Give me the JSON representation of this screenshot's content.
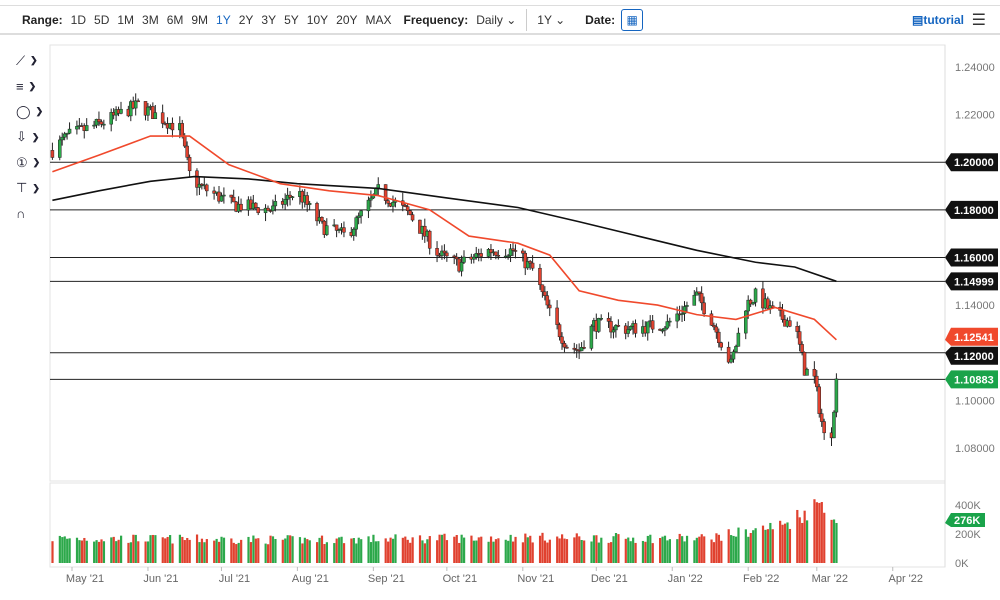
{
  "toolbar": {
    "range_label": "Range:",
    "ranges": [
      "1D",
      "5D",
      "1M",
      "3M",
      "6M",
      "9M",
      "1Y",
      "2Y",
      "3Y",
      "5Y",
      "10Y",
      "20Y",
      "MAX"
    ],
    "active_range": "1Y",
    "frequency_label": "Frequency:",
    "frequency": "Daily",
    "period": "1Y",
    "date_label": "Date:",
    "tutorial": "tutorial"
  },
  "colors": {
    "up": "#2ca84a",
    "down": "#e0412f",
    "ma_fast": "#f0492c",
    "ma_slow": "#111111",
    "label_bg": "#111111"
  },
  "left_tools": [
    "line-tool-icon",
    "fib-tool-icon",
    "shape-tool-icon",
    "arrow-down-icon",
    "numbered-marker-icon",
    "measure-tool-icon",
    "magnet-icon"
  ],
  "chart_data": {
    "type": "candlestick",
    "y_ticks": [
      "1.24000",
      "1.22000",
      "1.20000",
      "1.18000",
      "1.16000",
      "1.14000",
      "1.12000",
      "1.10000",
      "1.08000"
    ],
    "ylim": [
      1.074,
      1.248
    ],
    "x_ticks": [
      "May '21",
      "Jun '21",
      "Jul '21",
      "Aug '21",
      "Sep '21",
      "Oct '21",
      "Nov '21",
      "Dec '21",
      "Jan '22",
      "Feb '22",
      "Mar '22",
      "Apr '22"
    ],
    "close_path": [
      [
        "2021-04-23",
        1.205
      ],
      [
        "2021-04-29",
        1.211
      ],
      [
        "2021-05-12",
        1.216
      ],
      [
        "2021-05-28",
        1.224
      ],
      [
        "2021-06-04",
        1.22
      ],
      [
        "2021-06-14",
        1.214
      ],
      [
        "2021-06-18",
        1.195
      ],
      [
        "2021-06-22",
        1.19
      ],
      [
        "2021-07-06",
        1.182
      ],
      [
        "2021-07-22",
        1.18
      ],
      [
        "2021-08-01",
        1.188
      ],
      [
        "2021-08-11",
        1.173
      ],
      [
        "2021-08-21",
        1.169
      ],
      [
        "2021-09-03",
        1.188
      ],
      [
        "2021-09-16",
        1.178
      ],
      [
        "2021-09-28",
        1.161
      ],
      [
        "2021-10-06",
        1.157
      ],
      [
        "2021-10-18",
        1.163
      ],
      [
        "2021-10-28",
        1.163
      ],
      [
        "2021-11-05",
        1.155
      ],
      [
        "2021-11-13",
        1.134
      ],
      [
        "2021-11-19",
        1.123
      ],
      [
        "2021-11-24",
        1.121
      ],
      [
        "2021-11-30",
        1.132
      ],
      [
        "2021-12-14",
        1.13
      ],
      [
        "2021-12-30",
        1.132
      ],
      [
        "2022-01-11",
        1.144
      ],
      [
        "2022-01-17",
        1.134
      ],
      [
        "2022-01-25",
        1.115
      ],
      [
        "2022-01-31",
        1.14
      ],
      [
        "2022-02-04",
        1.144
      ],
      [
        "2022-02-12",
        1.136
      ],
      [
        "2022-02-20",
        1.132
      ],
      [
        "2022-02-24",
        1.113
      ],
      [
        "2022-02-28",
        1.109
      ],
      [
        "2022-03-04",
        1.085
      ],
      [
        "2022-03-07",
        1.087
      ],
      [
        "2022-03-09",
        1.109
      ]
    ],
    "ma_fast": [
      [
        "2021-04-23",
        1.196
      ],
      [
        "2021-05-12",
        1.203
      ],
      [
        "2021-06-02",
        1.211
      ],
      [
        "2021-06-18",
        1.211
      ],
      [
        "2021-07-04",
        1.199
      ],
      [
        "2021-07-25",
        1.191
      ],
      [
        "2021-08-14",
        1.188
      ],
      [
        "2021-09-03",
        1.186
      ],
      [
        "2021-09-24",
        1.18
      ],
      [
        "2021-10-10",
        1.169
      ],
      [
        "2021-10-30",
        1.166
      ],
      [
        "2021-11-12",
        1.161
      ],
      [
        "2021-11-24",
        1.146
      ],
      [
        "2021-12-10",
        1.142
      ],
      [
        "2021-12-26",
        1.14
      ],
      [
        "2022-01-11",
        1.136
      ],
      [
        "2022-01-27",
        1.134
      ],
      [
        "2022-02-12",
        1.139
      ],
      [
        "2022-02-28",
        1.134
      ],
      [
        "2022-03-09",
        1.12541
      ]
    ],
    "ma_slow": [
      [
        "2021-04-23",
        1.184
      ],
      [
        "2021-05-12",
        1.188
      ],
      [
        "2021-06-02",
        1.192
      ],
      [
        "2021-06-20",
        1.194
      ],
      [
        "2021-07-12",
        1.193
      ],
      [
        "2021-08-01",
        1.191
      ],
      [
        "2021-09-03",
        1.189
      ],
      [
        "2021-10-01",
        1.185
      ],
      [
        "2021-10-30",
        1.181
      ],
      [
        "2021-11-24",
        1.175
      ],
      [
        "2021-12-18",
        1.169
      ],
      [
        "2022-01-11",
        1.163
      ],
      [
        "2022-02-04",
        1.158
      ],
      [
        "2022-02-20",
        1.156
      ],
      [
        "2022-03-09",
        1.14999
      ]
    ],
    "levels": [
      {
        "label": "1.20000",
        "value": 1.2
      },
      {
        "label": "1.18000",
        "value": 1.18
      },
      {
        "label": "1.16000",
        "value": 1.16
      },
      {
        "label": "1.14999",
        "value": 1.14999
      },
      {
        "label": "1.12000",
        "value": 1.12
      },
      {
        "label": "1.10883",
        "value": 1.10883
      }
    ],
    "price_tags": [
      {
        "label": "1.12541",
        "value": 1.12541,
        "color": "#f0492c"
      },
      {
        "label": "1.10883",
        "value": 1.10883,
        "color": "#1aa34a"
      }
    ],
    "volume": {
      "ticks": [
        "400K",
        "200K",
        "0K"
      ],
      "last_label": "276K",
      "typical_k": [
        150,
        200
      ],
      "path": [
        [
          "2021-04-23",
          170
        ],
        [
          "2021-08-01",
          160
        ],
        [
          "2021-11-01",
          175
        ],
        [
          "2022-01-15",
          170
        ],
        [
          "2022-02-15",
          260
        ],
        [
          "2022-03-04",
          430
        ],
        [
          "2022-03-09",
          276
        ]
      ]
    }
  }
}
